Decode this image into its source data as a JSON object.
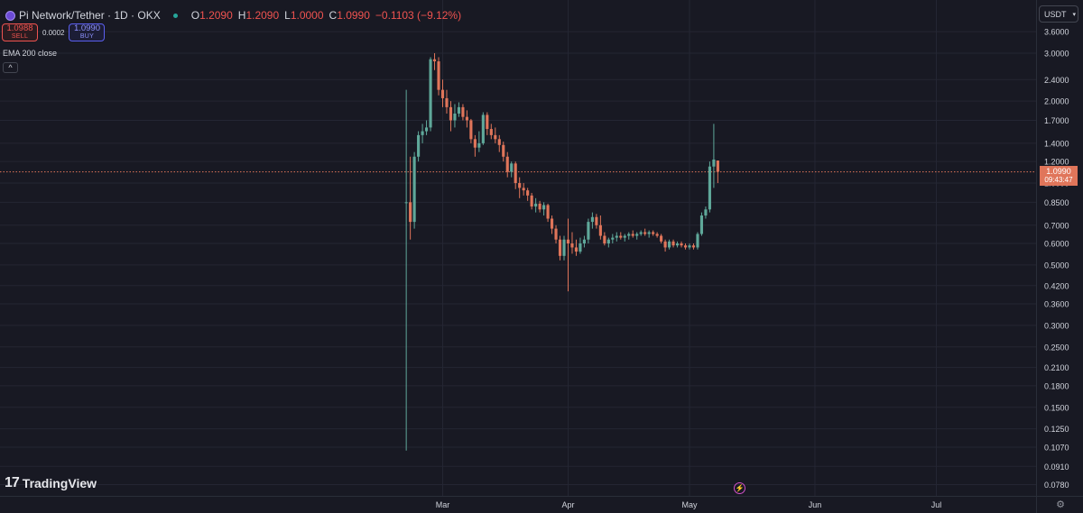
{
  "header": {
    "symbol": "Pi Network/Tether · 1D · OKX",
    "ohlc": [
      {
        "key": "O",
        "value": "1.2090"
      },
      {
        "key": "H",
        "value": "1.2090"
      },
      {
        "key": "L",
        "value": "1.0000"
      },
      {
        "key": "C",
        "value": "1.0990"
      }
    ],
    "change": "−0.1103 (−9.12%)"
  },
  "trade": {
    "sell_price": "1.0988",
    "sell_label": "SELL",
    "spread": "0.0002",
    "buy_price": "1.0990",
    "buy_label": "BUY"
  },
  "indicator": {
    "label": "EMA 200 close",
    "collapse_glyph": "^"
  },
  "currency": {
    "label": "USDT",
    "chevron": "▾"
  },
  "price_tag": {
    "price": "1.0990",
    "countdown": "09:43:47"
  },
  "branding": {
    "mark": "17",
    "name": "TradingView"
  },
  "icons": {
    "bolt": "bolt-icon",
    "settings": "gear-icon",
    "bolt_glyph": "⚡",
    "settings_glyph": "⚙"
  },
  "colors": {
    "up": "#5fa89a",
    "down": "#e0755a",
    "background": "#181923",
    "grid": "#242633",
    "axis_text": "#d1d4dc",
    "price_line": "#e0755a"
  },
  "chart_data": {
    "type": "candlestick",
    "title": "Pi Network/Tether · 1D · OKX",
    "y_scale": "log",
    "y_ticks": [
      3.6,
      3.0,
      2.4,
      2.0,
      1.7,
      1.4,
      1.2,
      1.0,
      0.85,
      0.7,
      0.6,
      0.5,
      0.42,
      0.36,
      0.3,
      0.25,
      0.21,
      0.18,
      0.15,
      0.125,
      0.107,
      0.091,
      0.078
    ],
    "y_tick_labels": [
      "3.6000",
      "3.0000",
      "2.4000",
      "2.0000",
      "1.7000",
      "1.4000",
      "1.2000",
      "1.0000",
      "0.8500",
      "0.7000",
      "0.6000",
      "0.5000",
      "0.4200",
      "0.3600",
      "0.3000",
      "0.2500",
      "0.2100",
      "0.1800",
      "0.1500",
      "0.1250",
      "0.1070",
      "0.0910",
      "0.0780"
    ],
    "x_ticks": [
      {
        "label": "Mar",
        "date": "2025-03-01"
      },
      {
        "label": "Apr",
        "date": "2025-04-01"
      },
      {
        "label": "May",
        "date": "2025-05-01"
      },
      {
        "label": "Jun",
        "date": "2025-06-01"
      },
      {
        "label": "Jul",
        "date": "2025-07-01"
      }
    ],
    "last_price": 1.099,
    "grid": true,
    "candles": [
      {
        "date": "2025-02-20",
        "o": 0.85,
        "h": 2.2,
        "l": 0.104,
        "c": 0.85
      },
      {
        "date": "2025-02-21",
        "o": 0.85,
        "h": 1.25,
        "l": 0.62,
        "c": 0.72
      },
      {
        "date": "2025-02-22",
        "o": 0.72,
        "h": 1.3,
        "l": 0.68,
        "c": 1.25
      },
      {
        "date": "2025-02-23",
        "o": 1.25,
        "h": 1.55,
        "l": 1.2,
        "c": 1.5
      },
      {
        "date": "2025-02-24",
        "o": 1.5,
        "h": 1.65,
        "l": 1.4,
        "c": 1.55
      },
      {
        "date": "2025-02-25",
        "o": 1.55,
        "h": 1.7,
        "l": 1.5,
        "c": 1.6
      },
      {
        "date": "2025-02-26",
        "o": 1.6,
        "h": 2.9,
        "l": 1.55,
        "c": 2.85
      },
      {
        "date": "2025-02-27",
        "o": 2.85,
        "h": 3.0,
        "l": 2.6,
        "c": 2.8
      },
      {
        "date": "2025-02-28",
        "o": 2.8,
        "h": 2.9,
        "l": 2.1,
        "c": 2.2
      },
      {
        "date": "2025-03-01",
        "o": 2.2,
        "h": 2.4,
        "l": 1.9,
        "c": 2.05
      },
      {
        "date": "2025-03-02",
        "o": 2.05,
        "h": 2.2,
        "l": 1.8,
        "c": 1.9
      },
      {
        "date": "2025-03-03",
        "o": 1.9,
        "h": 2.0,
        "l": 1.55,
        "c": 1.7
      },
      {
        "date": "2025-03-04",
        "o": 1.7,
        "h": 1.95,
        "l": 1.6,
        "c": 1.8
      },
      {
        "date": "2025-03-05",
        "o": 1.8,
        "h": 1.98,
        "l": 1.75,
        "c": 1.9
      },
      {
        "date": "2025-03-06",
        "o": 1.9,
        "h": 1.95,
        "l": 1.7,
        "c": 1.75
      },
      {
        "date": "2025-03-07",
        "o": 1.75,
        "h": 1.85,
        "l": 1.6,
        "c": 1.7
      },
      {
        "date": "2025-03-08",
        "o": 1.7,
        "h": 1.72,
        "l": 1.4,
        "c": 1.45
      },
      {
        "date": "2025-03-09",
        "o": 1.45,
        "h": 1.5,
        "l": 1.25,
        "c": 1.35
      },
      {
        "date": "2025-03-10",
        "o": 1.35,
        "h": 1.55,
        "l": 1.3,
        "c": 1.4
      },
      {
        "date": "2025-03-11",
        "o": 1.4,
        "h": 1.82,
        "l": 1.38,
        "c": 1.78
      },
      {
        "date": "2025-03-12",
        "o": 1.78,
        "h": 1.82,
        "l": 1.5,
        "c": 1.58
      },
      {
        "date": "2025-03-13",
        "o": 1.58,
        "h": 1.65,
        "l": 1.45,
        "c": 1.5
      },
      {
        "date": "2025-03-14",
        "o": 1.5,
        "h": 1.6,
        "l": 1.4,
        "c": 1.45
      },
      {
        "date": "2025-03-15",
        "o": 1.45,
        "h": 1.5,
        "l": 1.3,
        "c": 1.38
      },
      {
        "date": "2025-03-16",
        "o": 1.38,
        "h": 1.42,
        "l": 1.2,
        "c": 1.25
      },
      {
        "date": "2025-03-17",
        "o": 1.25,
        "h": 1.3,
        "l": 1.05,
        "c": 1.1
      },
      {
        "date": "2025-03-18",
        "o": 1.1,
        "h": 1.2,
        "l": 1.05,
        "c": 1.18
      },
      {
        "date": "2025-03-19",
        "o": 1.18,
        "h": 1.2,
        "l": 0.95,
        "c": 1.0
      },
      {
        "date": "2025-03-20",
        "o": 1.0,
        "h": 1.05,
        "l": 0.88,
        "c": 0.96
      },
      {
        "date": "2025-03-21",
        "o": 0.96,
        "h": 1.0,
        "l": 0.9,
        "c": 0.94
      },
      {
        "date": "2025-03-22",
        "o": 0.94,
        "h": 0.96,
        "l": 0.86,
        "c": 0.9
      },
      {
        "date": "2025-03-23",
        "o": 0.9,
        "h": 0.92,
        "l": 0.8,
        "c": 0.82
      },
      {
        "date": "2025-03-24",
        "o": 0.82,
        "h": 0.88,
        "l": 0.78,
        "c": 0.84
      },
      {
        "date": "2025-03-25",
        "o": 0.84,
        "h": 0.86,
        "l": 0.78,
        "c": 0.8
      },
      {
        "date": "2025-03-26",
        "o": 0.8,
        "h": 0.85,
        "l": 0.76,
        "c": 0.83
      },
      {
        "date": "2025-03-27",
        "o": 0.83,
        "h": 0.84,
        "l": 0.72,
        "c": 0.74
      },
      {
        "date": "2025-03-28",
        "o": 0.74,
        "h": 0.76,
        "l": 0.65,
        "c": 0.68
      },
      {
        "date": "2025-03-29",
        "o": 0.68,
        "h": 0.7,
        "l": 0.6,
        "c": 0.62
      },
      {
        "date": "2025-03-30",
        "o": 0.62,
        "h": 0.64,
        "l": 0.52,
        "c": 0.54
      },
      {
        "date": "2025-03-31",
        "o": 0.54,
        "h": 0.64,
        "l": 0.52,
        "c": 0.62
      },
      {
        "date": "2025-04-01",
        "o": 0.62,
        "h": 0.74,
        "l": 0.4,
        "c": 0.6
      },
      {
        "date": "2025-04-02",
        "o": 0.6,
        "h": 0.66,
        "l": 0.55,
        "c": 0.58
      },
      {
        "date": "2025-04-03",
        "o": 0.58,
        "h": 0.62,
        "l": 0.54,
        "c": 0.56
      },
      {
        "date": "2025-04-04",
        "o": 0.56,
        "h": 0.63,
        "l": 0.55,
        "c": 0.6
      },
      {
        "date": "2025-04-05",
        "o": 0.6,
        "h": 0.64,
        "l": 0.58,
        "c": 0.62
      },
      {
        "date": "2025-04-06",
        "o": 0.62,
        "h": 0.74,
        "l": 0.6,
        "c": 0.72
      },
      {
        "date": "2025-04-07",
        "o": 0.72,
        "h": 0.78,
        "l": 0.68,
        "c": 0.75
      },
      {
        "date": "2025-04-08",
        "o": 0.75,
        "h": 0.77,
        "l": 0.68,
        "c": 0.7
      },
      {
        "date": "2025-04-09",
        "o": 0.7,
        "h": 0.76,
        "l": 0.62,
        "c": 0.64
      },
      {
        "date": "2025-04-10",
        "o": 0.64,
        "h": 0.66,
        "l": 0.59,
        "c": 0.6
      },
      {
        "date": "2025-04-11",
        "o": 0.6,
        "h": 0.63,
        "l": 0.58,
        "c": 0.62
      },
      {
        "date": "2025-04-12",
        "o": 0.62,
        "h": 0.65,
        "l": 0.6,
        "c": 0.63
      },
      {
        "date": "2025-04-13",
        "o": 0.63,
        "h": 0.66,
        "l": 0.61,
        "c": 0.64
      },
      {
        "date": "2025-04-14",
        "o": 0.64,
        "h": 0.66,
        "l": 0.62,
        "c": 0.63
      },
      {
        "date": "2025-04-15",
        "o": 0.63,
        "h": 0.65,
        "l": 0.61,
        "c": 0.64
      },
      {
        "date": "2025-04-16",
        "o": 0.64,
        "h": 0.66,
        "l": 0.62,
        "c": 0.65
      },
      {
        "date": "2025-04-17",
        "o": 0.65,
        "h": 0.67,
        "l": 0.63,
        "c": 0.64
      },
      {
        "date": "2025-04-18",
        "o": 0.64,
        "h": 0.66,
        "l": 0.62,
        "c": 0.65
      },
      {
        "date": "2025-04-19",
        "o": 0.65,
        "h": 0.67,
        "l": 0.64,
        "c": 0.66
      },
      {
        "date": "2025-04-20",
        "o": 0.66,
        "h": 0.68,
        "l": 0.64,
        "c": 0.65
      },
      {
        "date": "2025-04-21",
        "o": 0.65,
        "h": 0.67,
        "l": 0.63,
        "c": 0.66
      },
      {
        "date": "2025-04-22",
        "o": 0.66,
        "h": 0.67,
        "l": 0.64,
        "c": 0.65
      },
      {
        "date": "2025-04-23",
        "o": 0.65,
        "h": 0.66,
        "l": 0.63,
        "c": 0.64
      },
      {
        "date": "2025-04-24",
        "o": 0.64,
        "h": 0.65,
        "l": 0.6,
        "c": 0.61
      },
      {
        "date": "2025-04-25",
        "o": 0.61,
        "h": 0.62,
        "l": 0.56,
        "c": 0.58
      },
      {
        "date": "2025-04-26",
        "o": 0.58,
        "h": 0.62,
        "l": 0.57,
        "c": 0.61
      },
      {
        "date": "2025-04-27",
        "o": 0.61,
        "h": 0.62,
        "l": 0.58,
        "c": 0.59
      },
      {
        "date": "2025-04-28",
        "o": 0.59,
        "h": 0.61,
        "l": 0.58,
        "c": 0.6
      },
      {
        "date": "2025-04-29",
        "o": 0.6,
        "h": 0.61,
        "l": 0.58,
        "c": 0.59
      },
      {
        "date": "2025-04-30",
        "o": 0.59,
        "h": 0.6,
        "l": 0.57,
        "c": 0.58
      },
      {
        "date": "2025-05-01",
        "o": 0.58,
        "h": 0.6,
        "l": 0.57,
        "c": 0.59
      },
      {
        "date": "2025-05-02",
        "o": 0.59,
        "h": 0.6,
        "l": 0.57,
        "c": 0.58
      },
      {
        "date": "2025-05-03",
        "o": 0.58,
        "h": 0.66,
        "l": 0.57,
        "c": 0.65
      },
      {
        "date": "2025-05-04",
        "o": 0.65,
        "h": 0.78,
        "l": 0.64,
        "c": 0.76
      },
      {
        "date": "2025-05-05",
        "o": 0.76,
        "h": 0.82,
        "l": 0.74,
        "c": 0.8
      },
      {
        "date": "2025-05-06",
        "o": 0.8,
        "h": 1.2,
        "l": 0.78,
        "c": 1.15
      },
      {
        "date": "2025-05-07",
        "o": 1.15,
        "h": 1.65,
        "l": 0.96,
        "c": 1.22
      },
      {
        "date": "2025-05-08",
        "o": 1.21,
        "h": 1.21,
        "l": 1.0,
        "c": 1.1
      }
    ]
  }
}
